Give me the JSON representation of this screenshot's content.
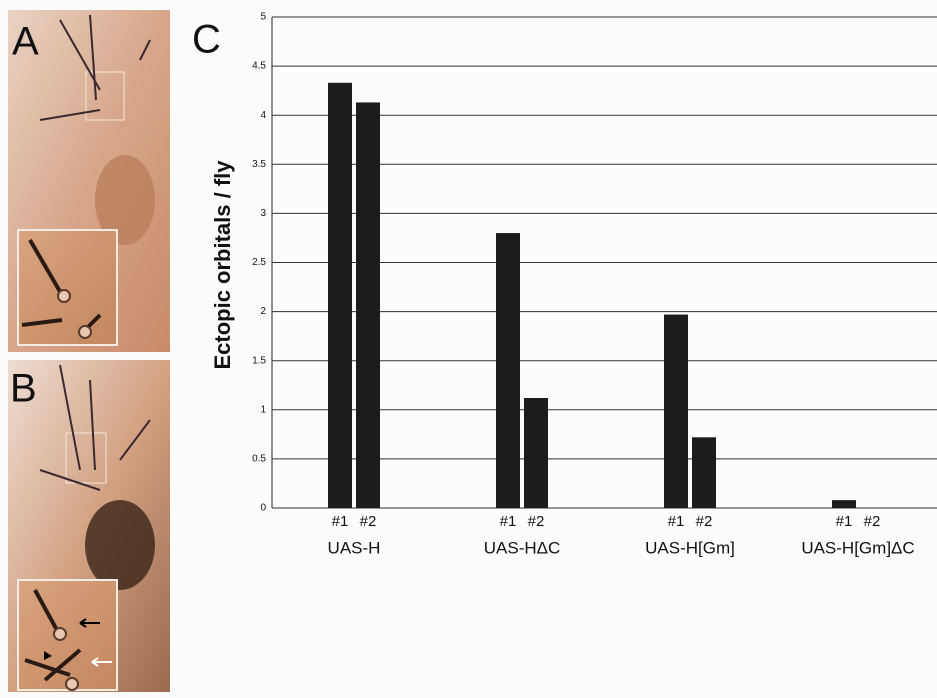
{
  "panel_labels": [
    "A",
    "B"
  ],
  "chart_data": {
    "type": "bar",
    "panel_label": "C",
    "ylabel": "Ectopic orbitals / fly",
    "categories": [
      "#1",
      "#2",
      "#1",
      "#2",
      "#1",
      "#2",
      "#1",
      "#2"
    ],
    "groups": [
      "UAS-H",
      "UAS-HΔC",
      "UAS-H[Gm]",
      "UAS-H[Gm]ΔC"
    ],
    "values": [
      4.33,
      4.13,
      2.8,
      1.12,
      1.97,
      0.72,
      0.08,
      0
    ],
    "color": "#1c1c1c",
    "ylim": [
      0,
      5
    ],
    "yticks": [
      0,
      0.5,
      1,
      1.5,
      2,
      2.5,
      3,
      3.5,
      4,
      4.5,
      5
    ],
    "grid": true
  }
}
